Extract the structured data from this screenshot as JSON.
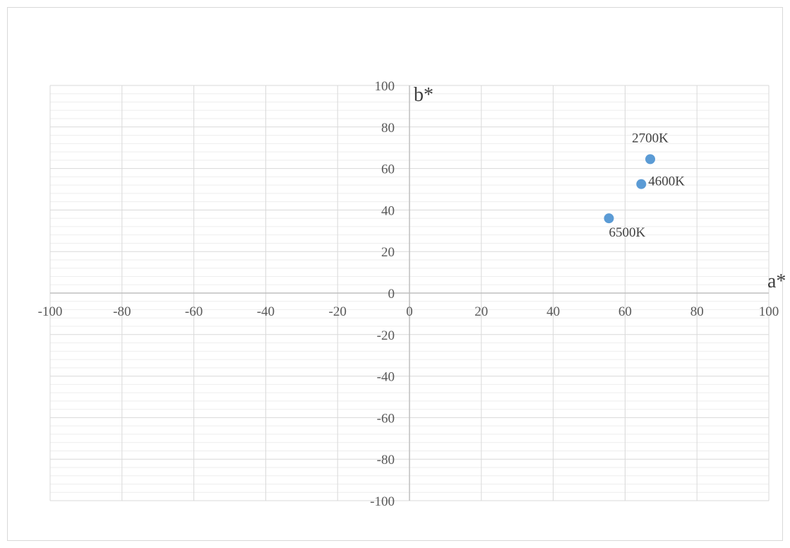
{
  "chart_data": {
    "type": "scatter",
    "title": "",
    "xlabel": "a*",
    "ylabel": "b*",
    "xlim": [
      -100,
      100
    ],
    "ylim": [
      -100,
      100
    ],
    "x_ticks": [
      -100,
      -80,
      -60,
      -40,
      -20,
      0,
      20,
      40,
      60,
      80,
      100
    ],
    "y_ticks": [
      -100,
      -80,
      -60,
      -40,
      -20,
      0,
      20,
      40,
      60,
      80,
      100
    ],
    "major_grid": true,
    "minor_grid": true,
    "legend": "none",
    "marker_color": "#5b9bd5",
    "grid_color": "#d9d9d9",
    "axis_color": "#bfbfbf",
    "points": [
      {
        "label": "2700K",
        "x": 67,
        "y": 64.5
      },
      {
        "label": "4600K",
        "x": 64.5,
        "y": 52.5
      },
      {
        "label": "6500K",
        "x": 55.5,
        "y": 36
      }
    ]
  }
}
